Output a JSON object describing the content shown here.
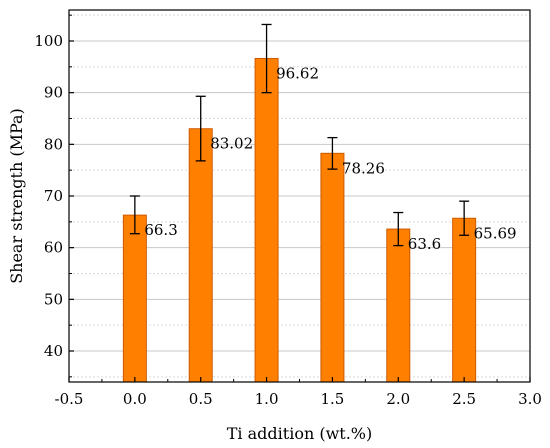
{
  "chart_data": {
    "type": "bar",
    "categories": [
      0.0,
      0.5,
      1.0,
      1.5,
      2.0,
      2.5
    ],
    "values": [
      66.3,
      83.02,
      96.62,
      78.26,
      63.6,
      65.69
    ],
    "value_labels": [
      "66.3",
      "83.02",
      "96.62",
      "78.26",
      "63.6",
      "65.69"
    ],
    "error_upper": [
      70.0,
      89.3,
      103.2,
      81.3,
      66.8,
      69.0
    ],
    "error_lower": [
      62.7,
      76.8,
      90.0,
      75.2,
      60.4,
      62.4
    ],
    "xlabel": "Ti addition (wt.%)",
    "ylabel": "Shear strength (MPa)",
    "xlim": [
      -0.5,
      3.0
    ],
    "ylim": [
      34,
      106
    ],
    "x_ticks": [
      "-0.5",
      "0.0",
      "0.5",
      "1.0",
      "1.5",
      "2.0",
      "2.5",
      "3.0"
    ],
    "y_ticks": [
      40,
      50,
      60,
      70,
      80,
      90,
      100
    ],
    "grid": "horizontal",
    "bar_color": "#ff8000",
    "bar_edge_color": "#cc5a00"
  }
}
